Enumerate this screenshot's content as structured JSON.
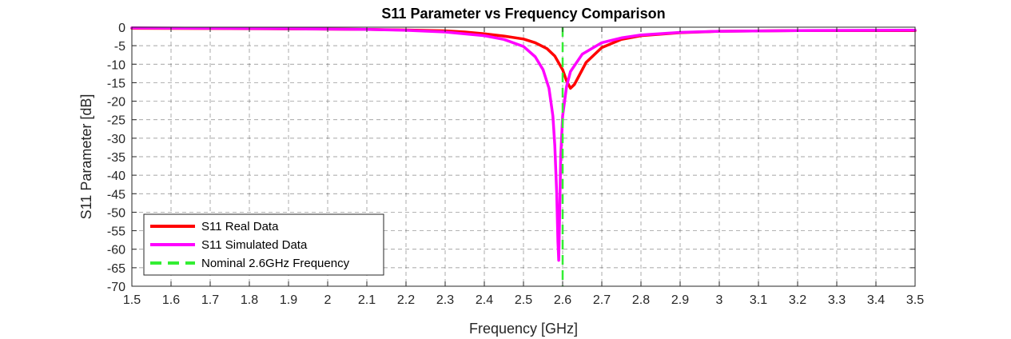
{
  "chart_data": {
    "type": "line",
    "title": "S11 Parameter vs Frequency Comparison",
    "xlabel": "Frequency [GHz]",
    "ylabel": "S11 Parameter [dB]",
    "xlim": [
      1.5,
      3.5
    ],
    "ylim": [
      -70,
      0
    ],
    "xticks": [
      1.5,
      1.6,
      1.7,
      1.8,
      1.9,
      2,
      2.1,
      2.2,
      2.3,
      2.4,
      2.5,
      2.6,
      2.7,
      2.8,
      2.9,
      3,
      3.1,
      3.2,
      3.3,
      3.4,
      3.5
    ],
    "xtick_labels": [
      "1.5",
      "1.6",
      "1.7",
      "1.8",
      "1.9",
      "2",
      "2.1",
      "2.2",
      "2.3",
      "2.4",
      "2.5",
      "2.6",
      "2.7",
      "2.8",
      "2.9",
      "3",
      "3.1",
      "3.2",
      "3.3",
      "3.4",
      "3.5"
    ],
    "yticks": [
      0,
      -5,
      -10,
      -15,
      -20,
      -25,
      -30,
      -35,
      -40,
      -45,
      -50,
      -55,
      -60,
      -65,
      -70
    ],
    "ytick_labels": [
      "0",
      "-5",
      "-10",
      "-15",
      "-20",
      "-25",
      "-30",
      "-35",
      "-40",
      "-45",
      "-50",
      "-55",
      "-60",
      "-65",
      "-70"
    ],
    "grid": true,
    "legend_position": "bottom-left",
    "series": [
      {
        "name": "S11 Real Data",
        "color": "#ff0000",
        "style": "solid",
        "x": [
          1.5,
          1.7,
          1.9,
          2.1,
          2.2,
          2.3,
          2.35,
          2.4,
          2.45,
          2.5,
          2.53,
          2.56,
          2.58,
          2.6,
          2.61,
          2.62,
          2.63,
          2.64,
          2.66,
          2.7,
          2.75,
          2.8,
          2.9,
          3.0,
          3.2,
          3.5
        ],
        "y": [
          -0.3,
          -0.35,
          -0.45,
          -0.6,
          -0.75,
          -1.0,
          -1.3,
          -1.8,
          -2.4,
          -3.2,
          -4.2,
          -5.8,
          -7.8,
          -11.5,
          -14.5,
          -16.5,
          -15.5,
          -13.5,
          -9.5,
          -5.5,
          -3.3,
          -2.3,
          -1.5,
          -1.1,
          -0.9,
          -0.9
        ]
      },
      {
        "name": "S11 Simulated Data",
        "color": "#ff00ff",
        "style": "solid",
        "x": [
          1.5,
          1.7,
          1.9,
          2.1,
          2.2,
          2.3,
          2.4,
          2.45,
          2.5,
          2.53,
          2.55,
          2.565,
          2.575,
          2.58,
          2.585,
          2.588,
          2.59,
          2.592,
          2.595,
          2.6,
          2.61,
          2.62,
          2.65,
          2.7,
          2.75,
          2.8,
          2.9,
          3.0,
          3.2,
          3.5
        ],
        "y": [
          -0.2,
          -0.3,
          -0.4,
          -0.6,
          -0.85,
          -1.3,
          -2.3,
          -3.3,
          -5.2,
          -8.0,
          -11.5,
          -16.5,
          -24.0,
          -32.0,
          -45.0,
          -58.0,
          -63.0,
          -52.0,
          -35.0,
          -24.0,
          -16.0,
          -12.0,
          -7.3,
          -4.2,
          -2.9,
          -2.1,
          -1.4,
          -1.1,
          -0.9,
          -0.8
        ]
      },
      {
        "name": "Nominal 2.6GHz Frequency",
        "color": "#33ee33",
        "style": "dashed",
        "x": [
          2.6,
          2.6
        ],
        "y": [
          0,
          -70
        ]
      }
    ]
  }
}
